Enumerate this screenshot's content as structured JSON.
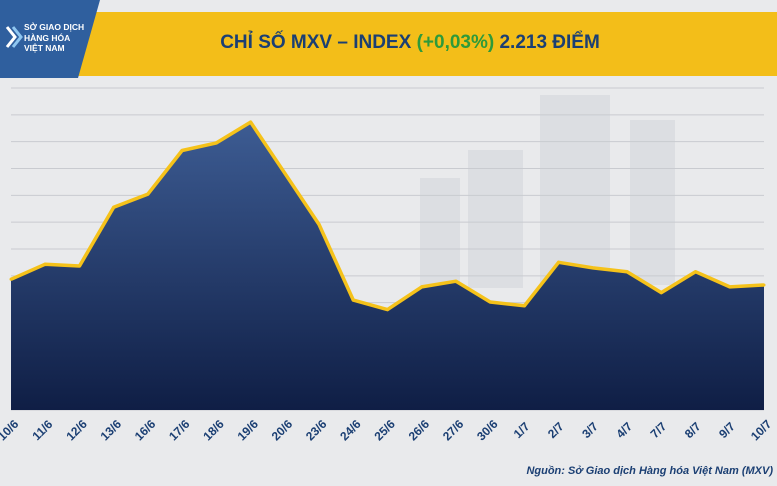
{
  "logo": {
    "lines": [
      "SỞ GIAO DỊCH",
      "HÀNG HÓA",
      "VIỆT NAM"
    ]
  },
  "header": {
    "title_prefix": "CHỈ SỐ MXV – INDEX",
    "title_change": "(+0,03%)",
    "title_value": "2.213 ĐIỂM"
  },
  "source": "Nguồn: Sở Giao dịch Hàng hóa Việt Nam (MXV)",
  "colors": {
    "band": "#f3be19",
    "logo_bg": "#2f5f9e",
    "title": "#1b3f73",
    "change_positive": "#2e9a3a",
    "line": "#f5c21a",
    "area_top": "#3d5c93",
    "area_bottom": "#0f1e45"
  },
  "chart_data": {
    "type": "area",
    "title": "CHỈ SỐ MXV – INDEX (+0,03%) 2.213 ĐIỂM",
    "xlabel": "",
    "ylabel": "",
    "categories": [
      "10/6",
      "11/6",
      "12/6",
      "13/6",
      "16/6",
      "17/6",
      "18/6",
      "19/6",
      "20/6",
      "23/6",
      "24/6",
      "25/6",
      "26/6",
      "27/6",
      "30/6",
      "1/7",
      "2/7",
      "3/7",
      "4/7",
      "7/7",
      "8/7",
      "9/7",
      "10/7"
    ],
    "values": [
      2214.5,
      2218.5,
      2218.0,
      2233.5,
      2237.0,
      2248.5,
      2250.5,
      2256.0,
      2242.5,
      2229.0,
      2209.0,
      2206.5,
      2212.5,
      2214.0,
      2208.5,
      2207.5,
      2219.0,
      2217.5,
      2216.5,
      2211.0,
      2216.5,
      2212.5,
      2213.0
    ],
    "ylim": [
      2180,
      2265
    ],
    "y_axis_labels": false,
    "grid": true,
    "legend": "none"
  }
}
